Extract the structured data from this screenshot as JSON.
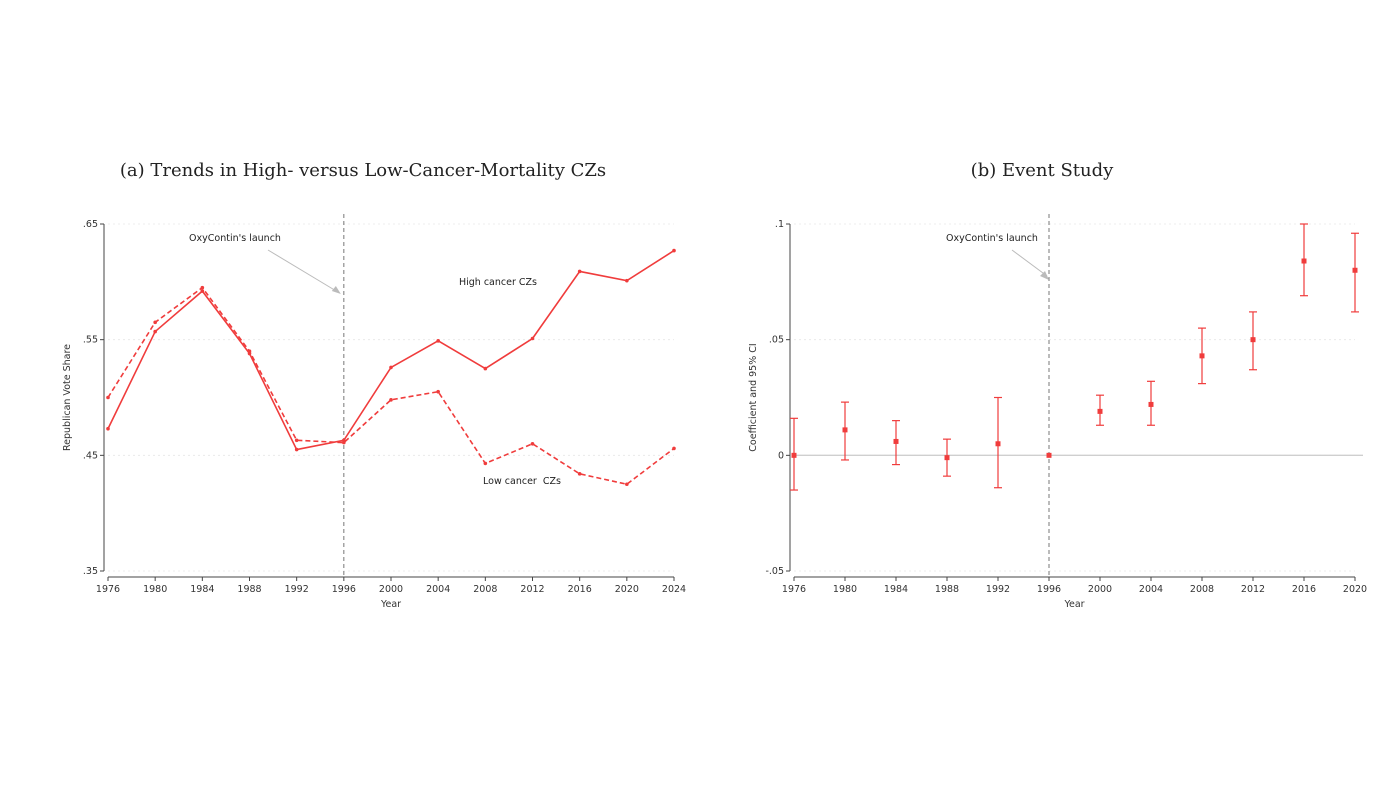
{
  "chart_data": [
    {
      "type": "line",
      "title": "(a) Trends in High- versus Low-Cancer-Mortality CZs",
      "xlabel": "Year",
      "ylabel": "Republican Vote Share",
      "x": [
        1976,
        1980,
        1984,
        1988,
        1992,
        1996,
        2000,
        2004,
        2008,
        2012,
        2016,
        2020,
        2024
      ],
      "xticks": [
        "1976",
        "1980",
        "1984",
        "1988",
        "1992",
        "1996",
        "2000",
        "2004",
        "2008",
        "2012",
        "2016",
        "2020",
        "2024"
      ],
      "yticks": [
        ".35",
        ".45",
        ".55",
        ".65"
      ],
      "ytick_values": [
        0.35,
        0.45,
        0.55,
        0.65
      ],
      "ylim": [
        0.35,
        0.65
      ],
      "series": [
        {
          "name": "High cancer CZs",
          "style": "solid",
          "values": [
            0.473,
            0.557,
            0.592,
            0.538,
            0.455,
            0.463,
            0.526,
            0.549,
            0.525,
            0.551,
            0.609,
            0.601,
            0.627
          ]
        },
        {
          "name": "Low cancer  CZs",
          "style": "dashed",
          "values": [
            0.5,
            0.565,
            0.595,
            0.54,
            0.463,
            0.461,
            0.498,
            0.505,
            0.443,
            0.46,
            0.434,
            0.425,
            0.456
          ]
        }
      ],
      "vline": {
        "x": 1996,
        "label": "OxyContin's launch"
      },
      "color": "#f03c3c"
    },
    {
      "type": "scatter",
      "title": "(b) Event Study",
      "xlabel": "Year",
      "ylabel": "Coefficient and 95% CI",
      "x": [
        1976,
        1980,
        1984,
        1988,
        1992,
        1996,
        2000,
        2004,
        2008,
        2012,
        2016,
        2020
      ],
      "xticks": [
        "1976",
        "1980",
        "1984",
        "1988",
        "1992",
        "1996",
        "2000",
        "2004",
        "2008",
        "2012",
        "2016",
        "2020"
      ],
      "yticks": [
        "-.05",
        "0",
        ".05",
        ".1"
      ],
      "ytick_values": [
        -0.05,
        0,
        0.05,
        0.1
      ],
      "ylim": [
        -0.05,
        0.1
      ],
      "coef": [
        0.0,
        0.011,
        0.006,
        -0.001,
        0.005,
        0.0,
        0.019,
        0.022,
        0.043,
        0.05,
        0.084,
        0.08
      ],
      "lower": [
        -0.015,
        -0.002,
        -0.004,
        -0.009,
        -0.014,
        0.0,
        0.013,
        0.013,
        0.031,
        0.037,
        0.069,
        0.062
      ],
      "upper": [
        0.016,
        0.023,
        0.015,
        0.007,
        0.025,
        0.0,
        0.026,
        0.032,
        0.055,
        0.062,
        0.1,
        0.096
      ],
      "vline": {
        "x": 1996,
        "label": "OxyContin's launch"
      },
      "color": "#f03c3c"
    }
  ]
}
